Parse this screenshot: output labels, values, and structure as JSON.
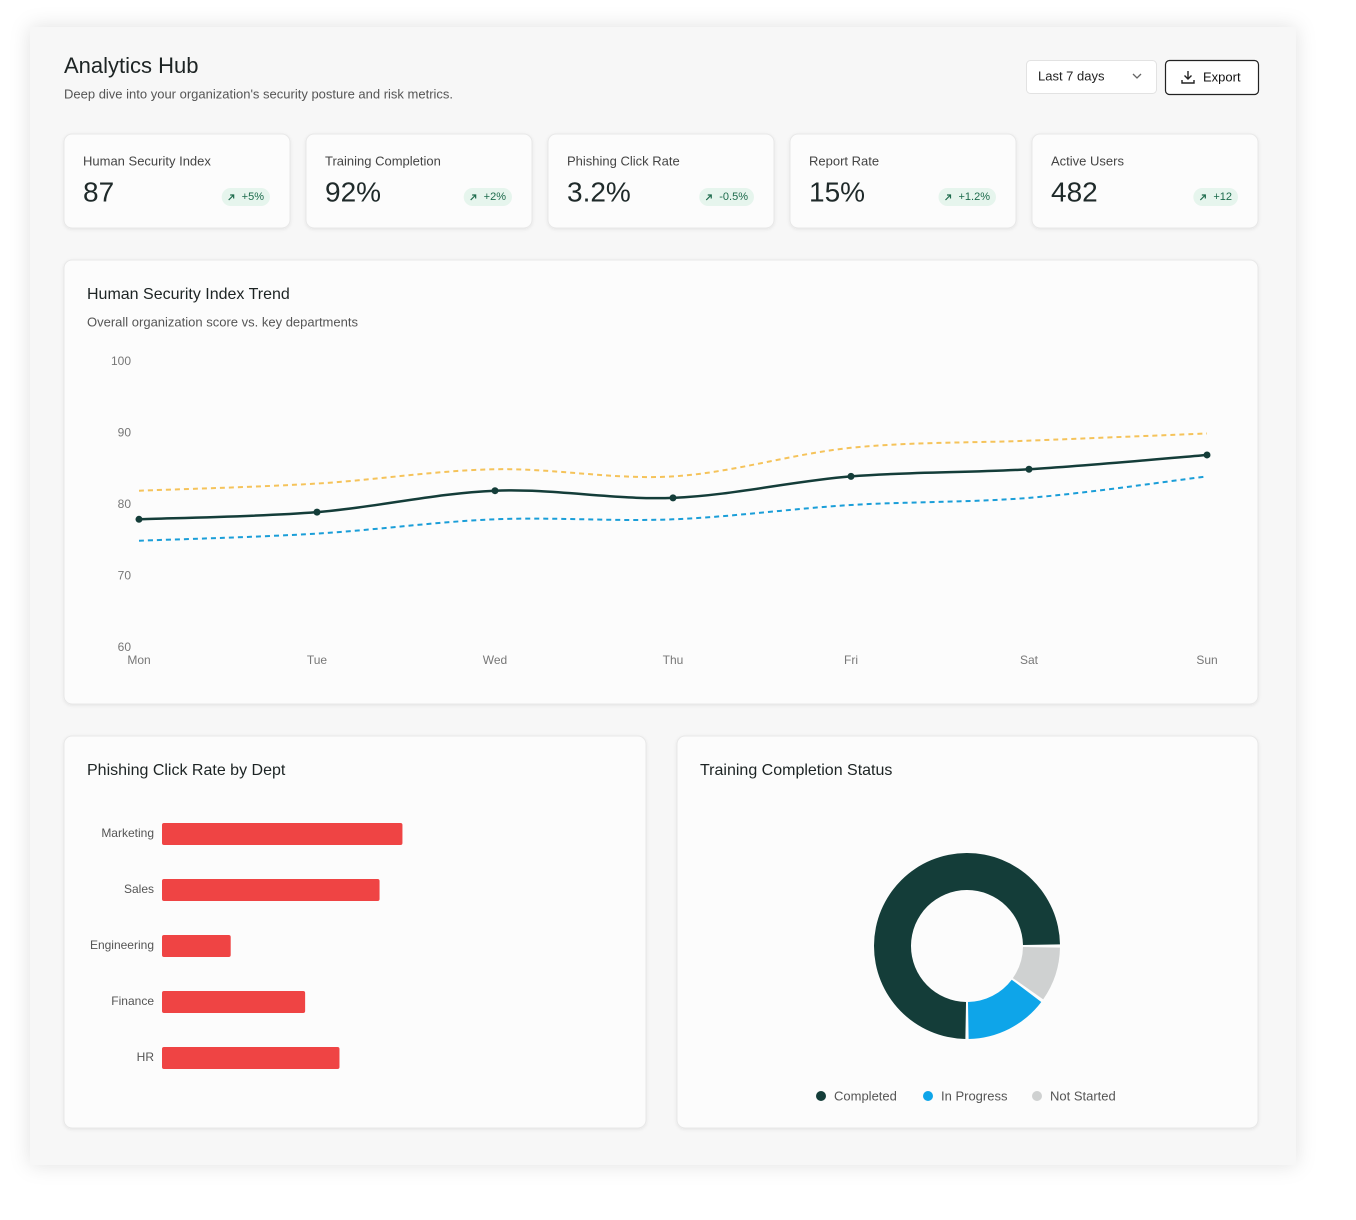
{
  "header": {
    "title": "Analytics Hub",
    "subtitle": "Deep dive into your organization's security posture and risk metrics.",
    "range": "Last 7 days",
    "export": "Export"
  },
  "kpis": [
    {
      "label": "Human Security Index",
      "value": "87",
      "change": "+5%"
    },
    {
      "label": "Training Completion",
      "value": "92%",
      "change": "+2%"
    },
    {
      "label": "Phishing Click Rate",
      "value": "3.2%",
      "change": "-0.5%"
    },
    {
      "label": "Report Rate",
      "value": "15%",
      "change": "+1.2%"
    },
    {
      "label": "Active Users",
      "value": "482",
      "change": "+12"
    }
  ],
  "chart_data": [
    {
      "type": "line",
      "title": "Human Security Index Trend",
      "subtitle": "Overall organization score vs. key departments",
      "categories": [
        "Mon",
        "Tue",
        "Wed",
        "Thu",
        "Fri",
        "Sat",
        "Sun"
      ],
      "series": [
        {
          "color": "#f5c35a",
          "dashed": true,
          "values": [
            82,
            83,
            85,
            84,
            88,
            89,
            90
          ]
        },
        {
          "color": "#1a9ed8",
          "dashed": true,
          "values": [
            75,
            76,
            78,
            78,
            80,
            81,
            84
          ]
        },
        {
          "color": "#143d39",
          "dashed": false,
          "markers": true,
          "values": [
            78,
            79,
            82,
            81,
            84,
            85,
            87
          ]
        }
      ],
      "ylim": [
        60,
        100
      ],
      "yticks": [
        100,
        90,
        80,
        70,
        60
      ]
    },
    {
      "type": "bar",
      "orientation": "horizontal",
      "title": "Phishing Click Rate by Dept",
      "categories": [
        "Marketing",
        "Sales",
        "Engineering",
        "Finance",
        "HR"
      ],
      "values": [
        8.4,
        7.6,
        2.4,
        5.0,
        6.2
      ],
      "color": "#ef4444",
      "xlim": [
        0,
        16
      ]
    },
    {
      "type": "donut",
      "title": "Training Completion Status",
      "categories": [
        "Completed",
        "In Progress",
        "Not Started"
      ],
      "values": [
        75,
        15,
        10
      ],
      "colors": [
        "#143d39",
        "#0ea5e9",
        "#cfd1d1"
      ]
    }
  ]
}
